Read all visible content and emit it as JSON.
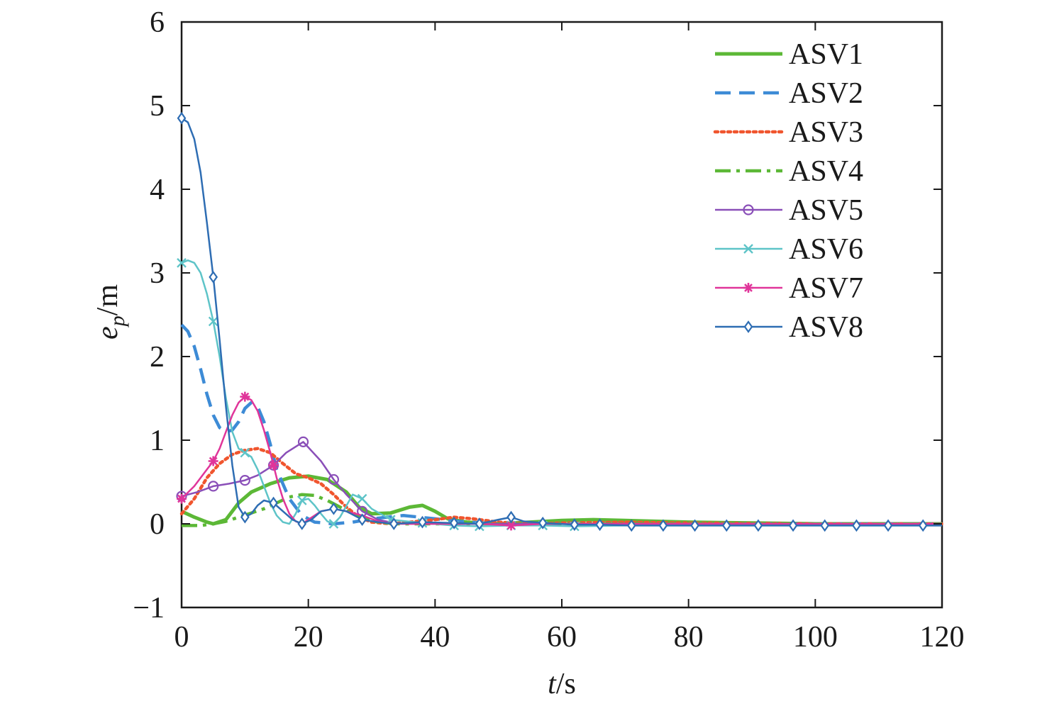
{
  "chart_data": {
    "type": "line",
    "xlabel": {
      "italic": "t",
      "rest": "/s"
    },
    "ylabel": {
      "main": "e",
      "sub": "p",
      "rest": "/m"
    },
    "xlim": [
      0,
      120
    ],
    "ylim": [
      -1,
      6
    ],
    "xticks": [
      0,
      20,
      40,
      60,
      80,
      100,
      120
    ],
    "yticks": [
      -1,
      0,
      1,
      2,
      3,
      4,
      5,
      6
    ],
    "ytick_labels": [
      "−1",
      "0",
      "1",
      "2",
      "3",
      "4",
      "5",
      "6"
    ],
    "grid": false,
    "legend_position": "top-right",
    "series": [
      {
        "name": "ASV1",
        "color": "#5cb836",
        "style": "solid",
        "marker": "none",
        "x": [
          0,
          2,
          4,
          5,
          7,
          9,
          11,
          14,
          17,
          20,
          23,
          26,
          28,
          30,
          33,
          36,
          38,
          40,
          42,
          45,
          50,
          55,
          60,
          65,
          70,
          80,
          90,
          100,
          110,
          120
        ],
        "y": [
          0.15,
          0.08,
          0.02,
          0.0,
          0.05,
          0.25,
          0.38,
          0.48,
          0.55,
          0.57,
          0.53,
          0.38,
          0.2,
          0.12,
          0.13,
          0.2,
          0.22,
          0.15,
          0.06,
          0.02,
          0.0,
          0.02,
          0.04,
          0.05,
          0.04,
          0.02,
          0.01,
          0.0,
          0.0,
          0.0
        ]
      },
      {
        "name": "ASV2",
        "color": "#3d8bd6",
        "style": "dashed",
        "marker": "none",
        "x": [
          0,
          1,
          2,
          3,
          4,
          5,
          6,
          7,
          8,
          9,
          10,
          11,
          12,
          13,
          14,
          15,
          17,
          19,
          21,
          24,
          27,
          30,
          35,
          40,
          45,
          50,
          60,
          80,
          100,
          120
        ],
        "y": [
          2.38,
          2.3,
          2.12,
          1.85,
          1.55,
          1.3,
          1.15,
          1.1,
          1.12,
          1.22,
          1.38,
          1.45,
          1.4,
          1.22,
          0.95,
          0.65,
          0.3,
          0.1,
          0.02,
          0.0,
          0.02,
          0.06,
          0.1,
          0.06,
          0.02,
          0.0,
          0.0,
          0.0,
          0.0,
          0.0
        ]
      },
      {
        "name": "ASV3",
        "color": "#f0552e",
        "style": "dotted",
        "marker": "none",
        "x": [
          0,
          2,
          4,
          6,
          8,
          10,
          12,
          14,
          16,
          18,
          20,
          22,
          24,
          26,
          28,
          30,
          33,
          36,
          40,
          43,
          46,
          50,
          55,
          60,
          70,
          80,
          100,
          120
        ],
        "y": [
          0.12,
          0.3,
          0.55,
          0.72,
          0.83,
          0.88,
          0.9,
          0.85,
          0.72,
          0.6,
          0.55,
          0.48,
          0.35,
          0.2,
          0.08,
          0.02,
          0.0,
          0.02,
          0.05,
          0.08,
          0.06,
          0.02,
          0.0,
          0.01,
          0.02,
          0.01,
          0.0,
          0.0
        ]
      },
      {
        "name": "ASV4",
        "color": "#5cb836",
        "style": "dashdot",
        "marker": "none",
        "x": [
          0,
          3,
          5,
          7,
          9,
          11,
          13,
          15,
          17,
          19,
          21,
          23,
          25,
          27,
          29,
          31,
          34,
          37,
          40,
          45,
          50,
          60,
          70,
          80,
          100,
          120
        ],
        "y": [
          -0.02,
          -0.02,
          0.0,
          0.03,
          0.08,
          0.13,
          0.18,
          0.25,
          0.32,
          0.35,
          0.34,
          0.28,
          0.2,
          0.12,
          0.06,
          0.02,
          0.0,
          0.0,
          0.0,
          0.0,
          0.0,
          0.0,
          0.0,
          0.0,
          0.0,
          0.0
        ]
      },
      {
        "name": "ASV5",
        "color": "#8a4fb8",
        "style": "solid",
        "marker": "circle",
        "x": [
          0,
          2.5,
          5,
          7.5,
          10,
          12,
          14.5,
          16.5,
          19.2,
          22,
          24,
          26,
          28.5,
          31,
          33.5,
          36,
          40,
          45,
          50,
          55,
          60,
          70,
          80,
          90,
          100,
          110,
          120
        ],
        "y": [
          0.33,
          0.38,
          0.45,
          0.48,
          0.52,
          0.58,
          0.7,
          0.85,
          0.98,
          0.75,
          0.53,
          0.35,
          0.15,
          0.05,
          0.01,
          0.0,
          0.0,
          0.0,
          0.0,
          0.0,
          0.0,
          0.0,
          0.0,
          0.0,
          0.0,
          0.0,
          0.0
        ],
        "marker_x": [
          0,
          5,
          10,
          14.5,
          19.2,
          24,
          28.5
        ]
      },
      {
        "name": "ASV6",
        "color": "#5ec4c8",
        "style": "solid",
        "marker": "x",
        "x": [
          0,
          1,
          2,
          3,
          4,
          5,
          6,
          7,
          8,
          9,
          10,
          11,
          12,
          13,
          14,
          15,
          16,
          17,
          18,
          19,
          20,
          21,
          22,
          23,
          24,
          25,
          27,
          28.5,
          30,
          33,
          38,
          43,
          47,
          52,
          57,
          62,
          70,
          80,
          100,
          120
        ],
        "y": [
          3.12,
          3.15,
          3.12,
          3.0,
          2.75,
          2.42,
          2.0,
          1.5,
          1.1,
          0.9,
          0.85,
          0.8,
          0.65,
          0.45,
          0.25,
          0.1,
          0.02,
          0.0,
          0.12,
          0.28,
          0.3,
          0.22,
          0.12,
          0.03,
          0.0,
          0.08,
          0.35,
          0.3,
          0.18,
          0.05,
          0.01,
          -0.02,
          -0.03,
          -0.02,
          -0.02,
          -0.03,
          -0.02,
          -0.02,
          -0.02,
          -0.02
        ],
        "marker_x": [
          0,
          5,
          10,
          19,
          24,
          28.5,
          33,
          38,
          43,
          47,
          52,
          57,
          62
        ]
      },
      {
        "name": "ASV7",
        "color": "#e0359a",
        "style": "solid",
        "marker": "star",
        "x": [
          0,
          2,
          4,
          5,
          6,
          7,
          8,
          9,
          10,
          11,
          12,
          13,
          14,
          15,
          16,
          17,
          18,
          19,
          20,
          22,
          24,
          26,
          28.5,
          31,
          33.5,
          38,
          43,
          47,
          52,
          57,
          62,
          70,
          80,
          90,
          100,
          110,
          120
        ],
        "y": [
          0.3,
          0.45,
          0.65,
          0.75,
          0.9,
          1.1,
          1.3,
          1.45,
          1.52,
          1.48,
          1.35,
          1.12,
          0.85,
          0.55,
          0.3,
          0.12,
          0.03,
          0.0,
          0.05,
          0.15,
          0.18,
          0.15,
          0.1,
          0.03,
          0.0,
          0.0,
          0.0,
          0.0,
          -0.02,
          0.0,
          0.0,
          0.0,
          0.0,
          0.0,
          0.0,
          0.0,
          0.0
        ],
        "marker_x": [
          0,
          5,
          10,
          14.5,
          52
        ]
      },
      {
        "name": "ASV8",
        "color": "#2e6db3",
        "style": "solid",
        "marker": "diamond",
        "x": [
          0,
          1,
          2,
          3,
          4,
          5,
          6,
          7,
          8,
          9,
          10,
          11,
          12,
          13,
          14.5,
          16,
          17.5,
          19,
          20.5,
          22,
          24,
          26,
          28.5,
          31,
          33.5,
          38,
          43,
          47,
          50,
          52,
          54,
          57,
          62,
          66,
          71,
          76,
          81,
          86,
          91,
          96.5,
          101.5,
          106.5,
          111.5,
          117,
          120
        ],
        "y": [
          4.85,
          4.8,
          4.6,
          4.2,
          3.6,
          2.95,
          2.2,
          1.4,
          0.7,
          0.2,
          0.08,
          0.12,
          0.22,
          0.28,
          0.25,
          0.15,
          0.05,
          0.0,
          0.05,
          0.15,
          0.18,
          0.15,
          0.05,
          0.02,
          0.0,
          0.02,
          0.01,
          0.0,
          0.05,
          0.08,
          0.03,
          0.01,
          -0.01,
          -0.01,
          -0.02,
          -0.02,
          -0.02,
          -0.02,
          -0.02,
          -0.02,
          -0.02,
          -0.02,
          -0.02,
          -0.02,
          -0.02
        ],
        "marker_x": [
          0,
          5,
          10,
          14.5,
          19,
          24,
          28.5,
          33.5,
          38,
          43,
          47,
          52,
          57,
          62,
          66,
          71,
          76,
          81,
          86,
          91,
          96.5,
          101.5,
          106.5,
          111.5,
          117
        ]
      }
    ]
  }
}
